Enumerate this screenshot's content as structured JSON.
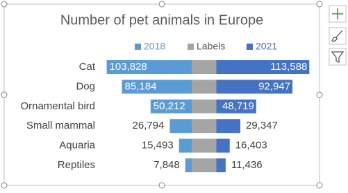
{
  "chart_data": {
    "type": "bar",
    "orientation": "horizontal",
    "layout": "butterfly",
    "title": "Number of pet animals in Europe",
    "categories": [
      "Cat",
      "Dog",
      "Ornamental bird",
      "Small mammal",
      "Aquaria",
      "Reptiles"
    ],
    "series": [
      {
        "name": "2018",
        "color": "#5b9bd5",
        "values": [
          103828,
          85184,
          50212,
          26794,
          15493,
          7848
        ],
        "value_labels": [
          "103,828",
          "85,184",
          "50,212",
          "26,794",
          "15,493",
          "7,848"
        ]
      },
      {
        "name": "Labels",
        "color": "#a5a5a5",
        "values": [
          30000,
          30000,
          30000,
          30000,
          30000,
          30000
        ]
      },
      {
        "name": "2021",
        "color": "#4472c4",
        "values": [
          113588,
          92947,
          48719,
          29347,
          16403,
          11436
        ],
        "value_labels": [
          "113,588",
          "92,947",
          "48,719",
          "29,347",
          "16,403",
          "11,436"
        ]
      }
    ],
    "legend": "top"
  }
}
